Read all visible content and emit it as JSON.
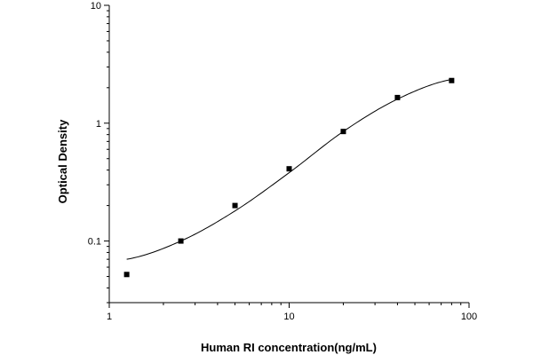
{
  "chart_data": {
    "type": "scatter",
    "title": "",
    "xlabel": "Human RI concentration(ng/mL)",
    "ylabel": "Optical Density",
    "x_scale": "log",
    "y_scale": "log",
    "xlim": [
      1,
      100
    ],
    "ylim": [
      0.03,
      10
    ],
    "x_ticks": [
      {
        "value": 1,
        "label": "1"
      },
      {
        "value": 10,
        "label": "10"
      },
      {
        "value": 100,
        "label": "100"
      }
    ],
    "y_ticks": [
      {
        "value": 0.1,
        "label": "0.1"
      },
      {
        "value": 1,
        "label": "1"
      },
      {
        "value": 10,
        "label": "10"
      }
    ],
    "grid": false,
    "series": [
      {
        "marker": "square",
        "color": "#000000",
        "points": [
          {
            "x": 1.25,
            "y": 0.052
          },
          {
            "x": 2.5,
            "y": 0.1
          },
          {
            "x": 5,
            "y": 0.2
          },
          {
            "x": 10,
            "y": 0.41
          },
          {
            "x": 20,
            "y": 0.85
          },
          {
            "x": 40,
            "y": 1.65
          },
          {
            "x": 80,
            "y": 2.3
          }
        ]
      }
    ],
    "fit_curve": {
      "color": "#000000",
      "points": [
        {
          "x": 1.25,
          "y": 0.07
        },
        {
          "x": 2.5,
          "y": 0.1
        },
        {
          "x": 5,
          "y": 0.18
        },
        {
          "x": 10,
          "y": 0.38
        },
        {
          "x": 20,
          "y": 0.85
        },
        {
          "x": 40,
          "y": 1.6
        },
        {
          "x": 80,
          "y": 2.35
        }
      ]
    }
  }
}
